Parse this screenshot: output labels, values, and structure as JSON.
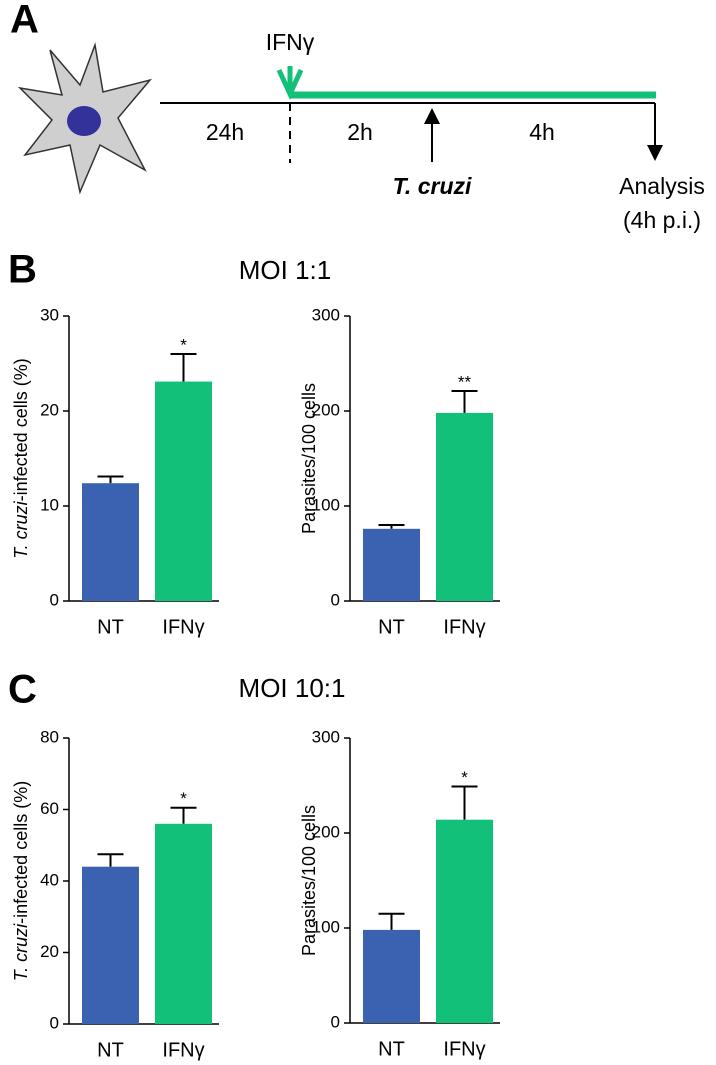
{
  "panels": [
    "A",
    "B",
    "C"
  ],
  "timeline": {
    "stimulus": "IFNγ",
    "intervals": [
      "24h",
      "2h",
      "4h"
    ],
    "infection": "T. cruzi",
    "analysis": "Analysis",
    "analysis_note": "(4h p.i.)"
  },
  "section_titles": [
    "MOI 1:1",
    "MOI 10:1"
  ],
  "chart_data": [
    {
      "type": "bar",
      "ylabel": [
        "T. cruzi",
        "-infected cells (%)"
      ],
      "categories": [
        "NT",
        "IFNγ"
      ],
      "values": [
        12.4,
        23.1
      ],
      "errors": [
        0.7,
        2.9
      ],
      "annotations": [
        null,
        "*"
      ],
      "colors": [
        "#3a62b0",
        "#12c07a"
      ],
      "ylim": [
        0,
        30
      ],
      "yticks": [
        0,
        10,
        20,
        30
      ]
    },
    {
      "type": "bar",
      "ylabel": [
        "Parasites/100 cells"
      ],
      "categories": [
        "NT",
        "IFNγ"
      ],
      "values": [
        76,
        198
      ],
      "errors": [
        4,
        23
      ],
      "annotations": [
        null,
        "**"
      ],
      "colors": [
        "#3a62b0",
        "#12c07a"
      ],
      "ylim": [
        0,
        300
      ],
      "yticks": [
        0,
        100,
        200,
        300
      ]
    },
    {
      "type": "bar",
      "ylabel": [
        "T. cruzi",
        "-infected cells (%)"
      ],
      "categories": [
        "NT",
        "IFNγ"
      ],
      "values": [
        44,
        56
      ],
      "errors": [
        3.5,
        4.5
      ],
      "annotations": [
        null,
        "*"
      ],
      "colors": [
        "#3a62b0",
        "#12c07a"
      ],
      "ylim": [
        0,
        80
      ],
      "yticks": [
        0,
        20,
        40,
        60,
        80
      ]
    },
    {
      "type": "bar",
      "ylabel": [
        "Parasites/100 cells"
      ],
      "categories": [
        "NT",
        "IFNγ"
      ],
      "values": [
        98,
        214
      ],
      "errors": [
        17,
        35
      ],
      "annotations": [
        null,
        "*"
      ],
      "colors": [
        "#3a62b0",
        "#12c07a"
      ],
      "ylim": [
        0,
        300
      ],
      "yticks": [
        0,
        100,
        200,
        300
      ]
    }
  ]
}
